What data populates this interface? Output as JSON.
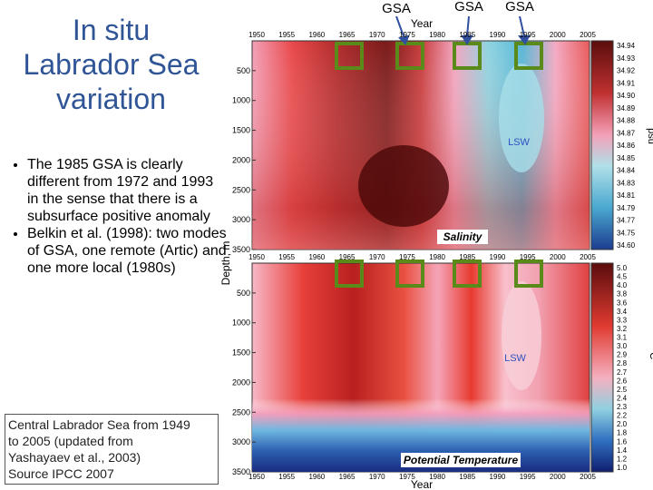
{
  "slide": {
    "title_lines": [
      "In situ",
      "Labrador Sea",
      "variation"
    ],
    "bullets": [
      "The 1985 GSA is clearly different from 1972  and 1993 in the sense that there is a subsurface positive anomaly",
      "Belkin et al. (1998): two modes of GSA, one remote (Artic) and one more local (1980s)"
    ],
    "caption_lines": [
      "Central Labrador Sea from 1949",
      "to 2005 (updated from",
      "Yashayaev et al., 2003)",
      "Source IPCC 2007"
    ]
  },
  "figure": {
    "annotations": [
      "GSA",
      "GSA",
      "GSA"
    ],
    "x_label": "Year",
    "y_label": "Depth, m",
    "year_ticks": [
      "1950",
      "1955",
      "1960",
      "1965",
      "1970",
      "1975",
      "1980",
      "1985",
      "1990",
      "1995",
      "2000",
      "2005"
    ],
    "depth_ticks": [
      "500",
      "1000",
      "1500",
      "2000",
      "2500",
      "3000",
      "3500"
    ],
    "top_panel": {
      "name": "Salinity",
      "water_mass": "LSW",
      "unit": "psu",
      "colorbar": [
        "34.94",
        "34.93",
        "34.92",
        "34.91",
        "34.90",
        "34.89",
        "34.88",
        "34.87",
        "34.86",
        "34.85",
        "34.84",
        "34.83",
        "34.81",
        "34.79",
        "34.77",
        "34.75",
        "34.60"
      ]
    },
    "bottom_panel": {
      "name": "Potential Temperature",
      "water_mass": "LSW",
      "unit": "°C",
      "colorbar": [
        "5.0",
        "4.5",
        "4.0",
        "3.8",
        "3.6",
        "3.4",
        "3.3",
        "3.2",
        "3.1",
        "3.0",
        "2.9",
        "2.8",
        "2.7",
        "2.6",
        "2.5",
        "2.4",
        "2.3",
        "2.2",
        "2.0",
        "1.8",
        "1.6",
        "1.4",
        "1.2",
        "1.0"
      ]
    }
  }
}
